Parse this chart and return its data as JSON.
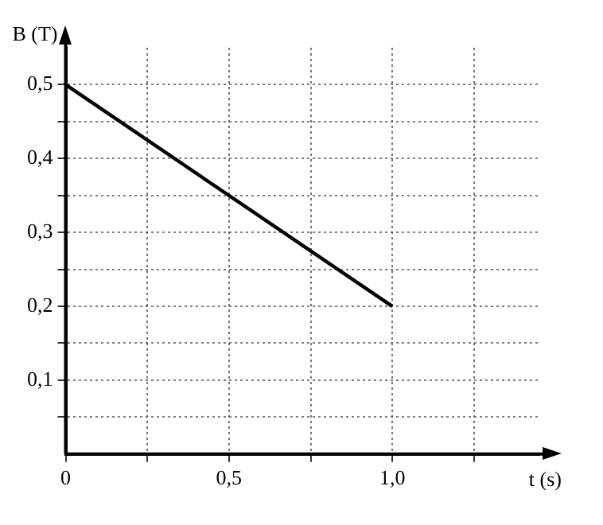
{
  "chart_data": {
    "type": "line",
    "xlabel": "t (s)",
    "ylabel": "B (T)",
    "x": [
      0,
      1
    ],
    "series": [
      {
        "color": "#000000",
        "values": [
          0.5,
          0.2
        ]
      }
    ],
    "xlim": [
      0,
      1.45
    ],
    "ylim": [
      0,
      0.55
    ],
    "xticks": [
      {
        "value": 0,
        "label": "0"
      },
      {
        "value": 0.25,
        "label": null
      },
      {
        "value": 0.5,
        "label": "0,5"
      },
      {
        "value": 0.75,
        "label": null
      },
      {
        "value": 1,
        "label": "1,0"
      },
      {
        "value": 1.25,
        "label": null
      }
    ],
    "yticks": [
      {
        "value": 0.05,
        "label": null
      },
      {
        "value": 0.1,
        "label": "0,1"
      },
      {
        "value": 0.15,
        "label": null
      },
      {
        "value": 0.2,
        "label": "0,2"
      },
      {
        "value": 0.25,
        "label": null
      },
      {
        "value": 0.3,
        "label": "0,3"
      },
      {
        "value": 0.35,
        "label": null
      },
      {
        "value": 0.4,
        "label": "0,4"
      },
      {
        "value": 0.45,
        "label": null
      },
      {
        "value": 0.5,
        "label": "0,5"
      }
    ],
    "grid": true,
    "legend": false,
    "marker": "none",
    "line_style": "solid"
  }
}
